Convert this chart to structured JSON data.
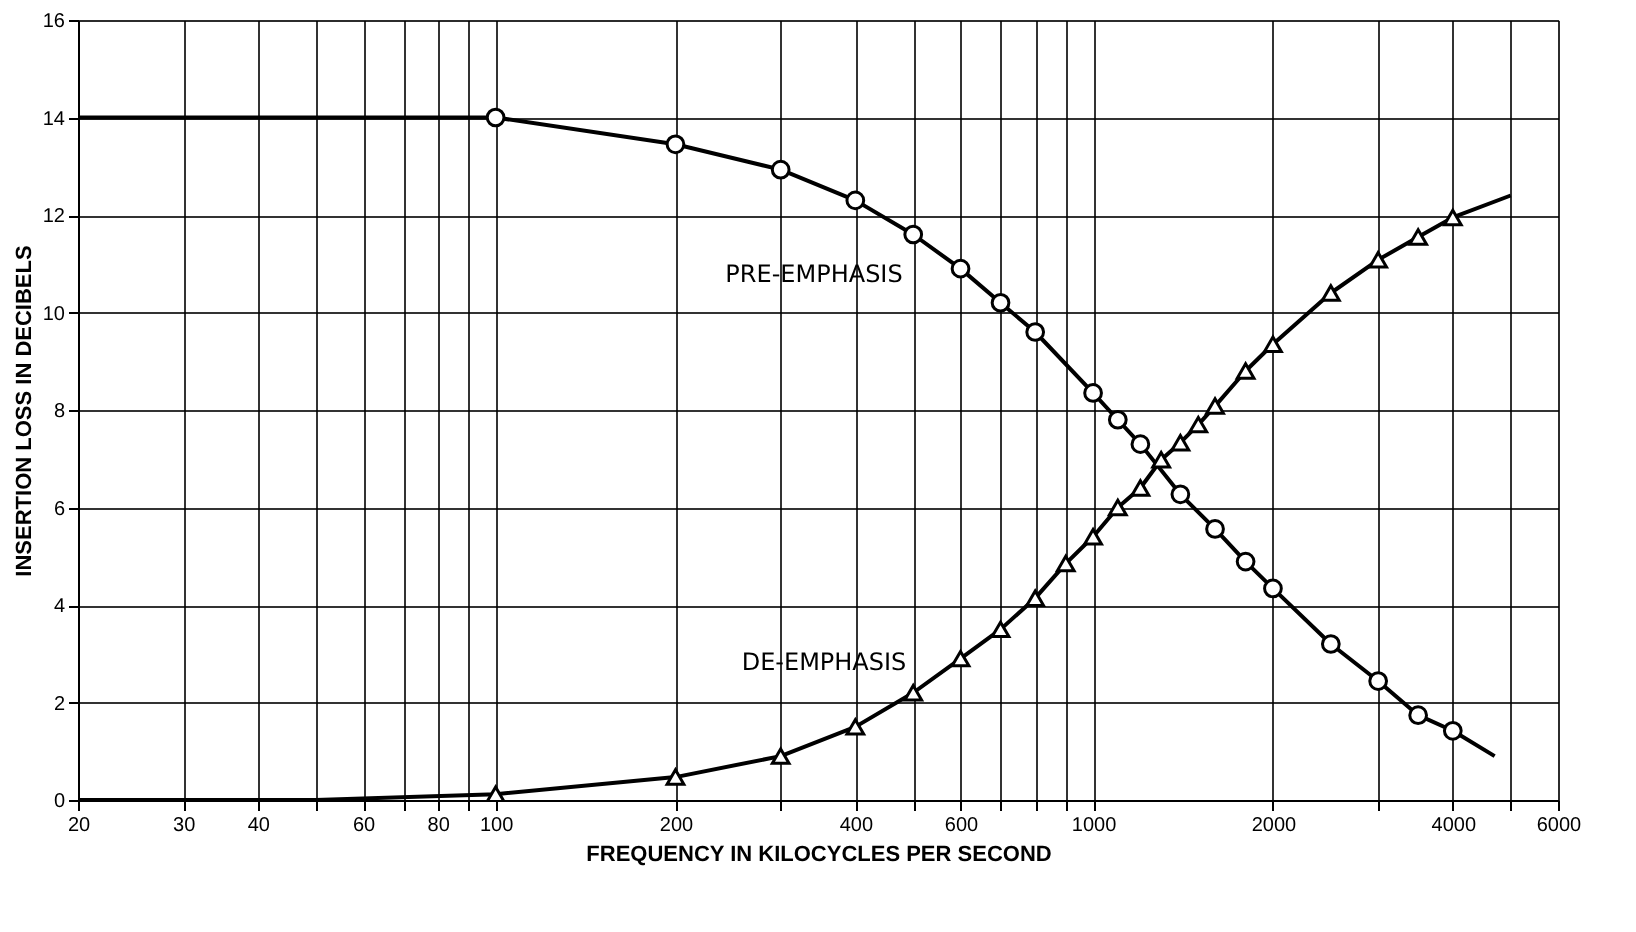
{
  "chart_data": {
    "type": "line",
    "xlabel": "FREQUENCY IN KILOCYCLES PER SECOND",
    "ylabel": "INSERTION LOSS IN DECIBELS",
    "log": "x",
    "grid": true,
    "xlim": [
      20,
      6000
    ],
    "ylim": [
      0,
      16
    ],
    "xticks": [
      20,
      30,
      40,
      {
        "value": 50,
        "label": null
      },
      60,
      {
        "value": 70,
        "label": null
      },
      80,
      {
        "value": 90,
        "label": null
      },
      100,
      200,
      {
        "value": 300,
        "label": null
      },
      400,
      {
        "value": 500,
        "label": null
      },
      600,
      {
        "value": 700,
        "label": null
      },
      {
        "value": 800,
        "label": null
      },
      {
        "value": 900,
        "label": null
      },
      1000,
      2000,
      {
        "value": 3000,
        "label": null
      },
      4000,
      {
        "value": 5000,
        "label": null
      },
      6000
    ],
    "yticks": [
      0,
      2,
      4,
      6,
      8,
      10,
      12,
      14,
      16
    ],
    "series": [
      {
        "marker": "none",
        "color": "#000000",
        "x": [
          20,
          100,
          200,
          300,
          400,
          500,
          600,
          700,
          800,
          1000,
          1100,
          1200,
          1400,
          1600,
          1800,
          2000,
          2500,
          3000,
          3500,
          4000,
          4700
        ],
        "values": [
          14.0,
          14.0,
          13.45,
          12.93,
          12.3,
          11.6,
          10.9,
          10.2,
          9.6,
          8.35,
          7.8,
          7.3,
          6.27,
          5.56,
          4.89,
          4.34,
          3.2,
          2.44,
          1.74,
          1.42,
          0.9
        ]
      },
      {
        "type": "scatter",
        "marker": "circle",
        "color": "#000000",
        "x": [
          100,
          200,
          300,
          400,
          500,
          600,
          700,
          800,
          1000,
          1100,
          1200,
          1400,
          1600,
          1800,
          2000,
          2500,
          3000,
          3500,
          4000
        ],
        "values": [
          14.0,
          13.45,
          12.93,
          12.3,
          11.6,
          10.9,
          10.2,
          9.6,
          8.35,
          7.8,
          7.3,
          6.27,
          5.56,
          4.89,
          4.34,
          3.2,
          2.44,
          1.74,
          1.42
        ]
      },
      {
        "marker": "none",
        "color": "#000000",
        "x": [
          20,
          50,
          100,
          200,
          300,
          400,
          500,
          600,
          700,
          800,
          900,
          1000,
          1100,
          1200,
          1300,
          1400,
          1500,
          1600,
          1800,
          2000,
          2500,
          3000,
          3500,
          4000,
          5000
        ],
        "values": [
          0.0,
          0.0,
          0.12,
          0.47,
          0.9,
          1.5,
          2.2,
          2.9,
          3.5,
          4.14,
          4.85,
          5.4,
          6.0,
          6.4,
          6.98,
          7.33,
          7.7,
          8.08,
          8.8,
          9.35,
          10.4,
          11.08,
          11.55,
          11.95,
          12.4
        ]
      },
      {
        "type": "scatter",
        "marker": "triangle",
        "color": "#000000",
        "x": [
          100,
          200,
          300,
          400,
          500,
          600,
          700,
          800,
          900,
          1000,
          1100,
          1200,
          1300,
          1400,
          1500,
          1600,
          1800,
          2000,
          2500,
          3000,
          3500,
          4000
        ],
        "values": [
          0.12,
          0.47,
          0.9,
          1.5,
          2.2,
          2.9,
          3.5,
          4.14,
          4.85,
          5.4,
          6.0,
          6.4,
          6.98,
          7.33,
          7.7,
          8.08,
          8.8,
          9.35,
          10.4,
          11.08,
          11.55,
          11.95
        ]
      }
    ],
    "annotations": [
      "PRE-EMPHASIS",
      "DE-EMPHASIS"
    ]
  }
}
